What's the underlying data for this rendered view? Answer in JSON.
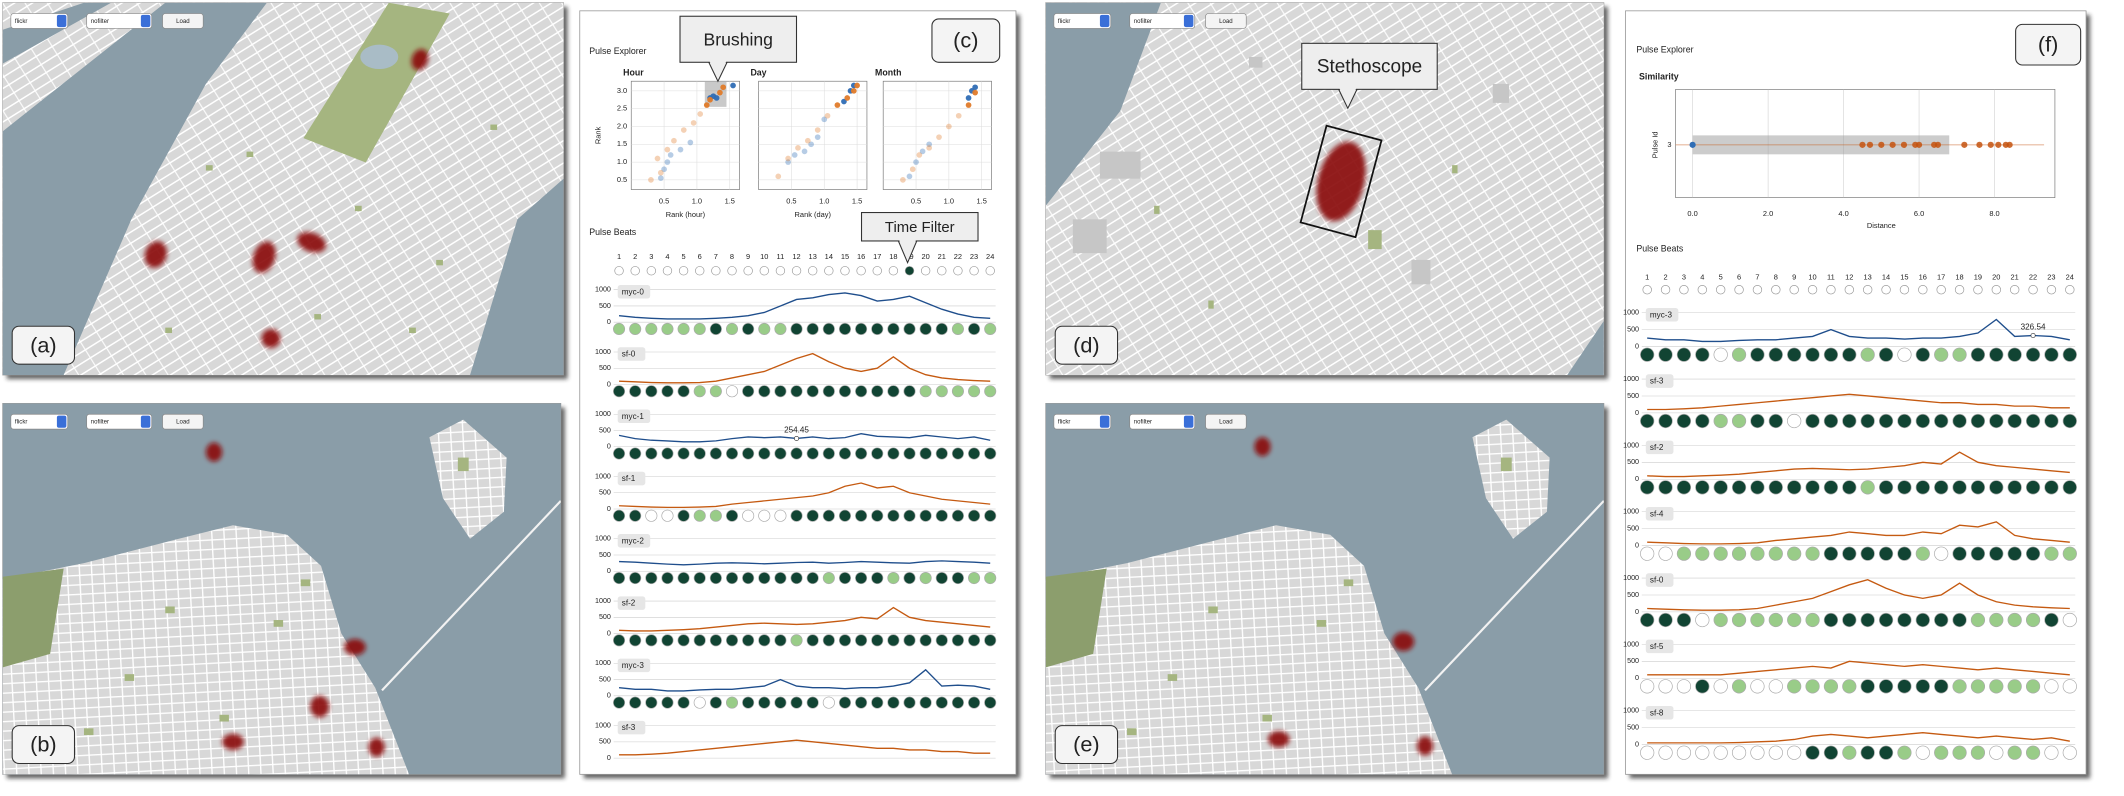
{
  "figure_labels": [
    "(a)",
    "(b)",
    "(c)",
    "(d)",
    "(e)",
    "(f)"
  ],
  "controls": {
    "source": "flickr",
    "filter": "nofilter",
    "button": "Load"
  },
  "callouts": {
    "brushing": "Brushing",
    "time_filter": "Time Filter",
    "stethoscope": "Stethoscope"
  },
  "explorer_c": {
    "title": "Pulse Explorer",
    "y_label": "Rank",
    "xlim": [
      0,
      1.65
    ],
    "xticks": [
      0.5,
      {
        "value": 1,
        "label": "1.0"
      },
      1.5
    ],
    "ylim": [
      0.23,
      3.27
    ],
    "yticks": [
      0.5,
      {
        "value": 1,
        "label": "1.0"
      },
      1.5,
      {
        "value": 2,
        "label": "2.0"
      },
      2.5,
      {
        "value": 3,
        "label": "3.0"
      }
    ],
    "plots": [
      {
        "title": "Hour",
        "x_label": "Rank (hour)",
        "brush": {
          "x": [
            1.12,
            1.45
          ],
          "y": [
            2.55,
            3.25
          ]
        },
        "series": [
          {
            "color": "#2f6db5",
            "x": [
              0.45,
              0.5,
              0.55,
              0.6,
              0.75,
              0.9,
              1.2,
              1.25,
              1.3,
              1.55
            ],
            "y": [
              0.55,
              0.8,
              1.0,
              1.2,
              1.35,
              1.55,
              2.8,
              2.85,
              2.8,
              3.15
            ]
          },
          {
            "color": "#e07b2a",
            "x": [
              0.3,
              0.4,
              0.45,
              0.55,
              0.65,
              0.8,
              0.95,
              1.05,
              1.15,
              1.2,
              1.35,
              1.4
            ],
            "y": [
              0.5,
              1.1,
              0.7,
              1.35,
              1.6,
              1.9,
              2.1,
              2.35,
              2.6,
              2.75,
              2.95,
              3.1
            ]
          }
        ]
      },
      {
        "title": "Day",
        "x_label": "Rank (day)",
        "series": [
          {
            "color": "#2f6db5",
            "x": [
              0.45,
              0.55,
              0.7,
              0.8,
              0.9,
              1.0,
              1.3,
              1.4,
              1.45
            ],
            "y": [
              1.0,
              1.2,
              1.3,
              1.5,
              1.7,
              2.2,
              2.7,
              3.0,
              3.15
            ]
          },
          {
            "color": "#e07b2a",
            "x": [
              0.3,
              0.45,
              0.6,
              0.75,
              0.9,
              1.05,
              1.2,
              1.35,
              1.45,
              1.5
            ],
            "y": [
              0.6,
              1.1,
              1.4,
              1.6,
              1.9,
              2.3,
              2.6,
              2.8,
              3.0,
              3.15
            ]
          }
        ]
      },
      {
        "title": "Month",
        "series": [
          {
            "color": "#2f6db5",
            "x": [
              0.4,
              0.5,
              0.6,
              0.7,
              1.3,
              1.35,
              1.4
            ],
            "y": [
              0.6,
              1.0,
              1.3,
              1.5,
              2.8,
              3.0,
              3.1
            ]
          },
          {
            "color": "#e07b2a",
            "x": [
              0.3,
              0.45,
              0.55,
              0.7,
              0.85,
              1.0,
              1.15,
              1.3,
              1.4
            ],
            "y": [
              0.5,
              0.8,
              1.2,
              1.4,
              1.7,
              2.0,
              2.3,
              2.6,
              2.95
            ]
          }
        ]
      }
    ]
  },
  "beats_c": {
    "title": "Pulse Beats",
    "hours": [
      1,
      2,
      3,
      4,
      5,
      6,
      7,
      8,
      9,
      10,
      11,
      12,
      13,
      14,
      15,
      16,
      17,
      18,
      19,
      20,
      21,
      22,
      23,
      24
    ],
    "ylim": [
      0,
      1000
    ],
    "yticks": [
      1000,
      500,
      0
    ],
    "rows": [
      {
        "name": "myc-0",
        "color": "#1f4e8c",
        "values": [
          200,
          150,
          120,
          100,
          100,
          100,
          120,
          150,
          200,
          300,
          500,
          700,
          750,
          850,
          900,
          820,
          650,
          700,
          800,
          600,
          400,
          250,
          150,
          120
        ],
        "beats": [
          "#9c8",
          "#9c8",
          "#9c8",
          "#9c8",
          "#9c8",
          "#9c8",
          "#143",
          "#9c8",
          "#143",
          "#9c8",
          "#9c8",
          "#143",
          "#143",
          "#143",
          "#143",
          "#143",
          "#143",
          "#143",
          "#143",
          "#143",
          "#143",
          "#9c8",
          "#143",
          "#9c8"
        ]
      },
      {
        "name": "sf-0",
        "color": "#c55a11",
        "values": [
          100,
          80,
          60,
          50,
          50,
          60,
          100,
          200,
          300,
          400,
          600,
          800,
          950,
          700,
          500,
          400,
          500,
          850,
          500,
          300,
          200,
          150,
          120,
          100
        ],
        "beats": [
          "#143",
          "#143",
          "#143",
          "#143",
          "#143",
          "#9c8",
          "#9c8",
          "#fff",
          "#143",
          "#143",
          "#143",
          "#143",
          "#143",
          "#143",
          "#143",
          "#143",
          "#143",
          "#143",
          "#143",
          "#9c8",
          "#9c8",
          "#9c8",
          "#9c8",
          "#9c8"
        ]
      },
      {
        "name": "myc-1",
        "color": "#1f4e8c",
        "values": [
          350,
          250,
          200,
          180,
          150,
          150,
          180,
          250,
          300,
          280,
          300,
          254.45,
          300,
          250,
          280,
          400,
          320,
          300,
          280,
          350,
          300,
          250,
          300,
          200
        ],
        "beats": [
          "#143",
          "#143",
          "#143",
          "#143",
          "#143",
          "#143",
          "#143",
          "#143",
          "#143",
          "#143",
          "#143",
          "#143",
          "#143",
          "#143",
          "#143",
          "#143",
          "#143",
          "#143",
          "#143",
          "#143",
          "#143",
          "#143",
          "#143",
          "#143"
        ]
      },
      {
        "name": "sf-1",
        "color": "#c55a11",
        "values": [
          100,
          80,
          60,
          50,
          50,
          60,
          80,
          150,
          200,
          250,
          300,
          350,
          400,
          500,
          700,
          800,
          650,
          700,
          500,
          400,
          300,
          250,
          200,
          150
        ],
        "beats": [
          "#143",
          "#143",
          "#fff",
          "#fff",
          "#143",
          "#9c8",
          "#9c8",
          "#143",
          "#fff",
          "#fff",
          "#fff",
          "#143",
          "#143",
          "#143",
          "#143",
          "#143",
          "#143",
          "#143",
          "#143",
          "#143",
          "#143",
          "#143",
          "#143",
          "#143"
        ]
      },
      {
        "name": "myc-2",
        "color": "#1f4e8c",
        "values": [
          300,
          280,
          250,
          220,
          200,
          220,
          250,
          260,
          250,
          230,
          250,
          270,
          280,
          250,
          270,
          300,
          280,
          260,
          250,
          300,
          320,
          300,
          280,
          250
        ],
        "beats": [
          "#143",
          "#143",
          "#143",
          "#143",
          "#143",
          "#143",
          "#143",
          "#143",
          "#143",
          "#143",
          "#143",
          "#143",
          "#143",
          "#9c8",
          "#143",
          "#143",
          "#143",
          "#9c8",
          "#143",
          "#9c8",
          "#143",
          "#143",
          "#9c8",
          "#9c8"
        ]
      },
      {
        "name": "sf-2",
        "color": "#c55a11",
        "values": [
          100,
          80,
          80,
          100,
          120,
          150,
          200,
          250,
          300,
          320,
          300,
          280,
          300,
          350,
          400,
          500,
          450,
          800,
          500,
          400,
          350,
          300,
          250,
          200
        ],
        "beats": [
          "#143",
          "#143",
          "#143",
          "#143",
          "#143",
          "#143",
          "#143",
          "#143",
          "#143",
          "#143",
          "#143",
          "#9c8",
          "#143",
          "#143",
          "#143",
          "#143",
          "#143",
          "#143",
          "#143",
          "#143",
          "#143",
          "#143",
          "#143",
          "#143"
        ]
      },
      {
        "name": "myc-3",
        "color": "#1f4e8c",
        "values": [
          250,
          200,
          200,
          150,
          150,
          180,
          200,
          200,
          250,
          300,
          500,
          300,
          250,
          250,
          220,
          250,
          250,
          300,
          400,
          800,
          300,
          326.54,
          300,
          200
        ],
        "beats": [
          "#143",
          "#143",
          "#143",
          "#143",
          "#143",
          "#fff",
          "#143",
          "#9c8",
          "#143",
          "#143",
          "#143",
          "#143",
          "#143",
          "#fff",
          "#143",
          "#143",
          "#143",
          "#143",
          "#143",
          "#143",
          "#143",
          "#143",
          "#143",
          "#143"
        ]
      },
      {
        "name": "sf-3",
        "color": "#c55a11",
        "values": [
          100,
          100,
          120,
          150,
          200,
          250,
          300,
          350,
          400,
          450,
          500,
          550,
          500,
          450,
          400,
          350,
          300,
          300,
          250,
          250,
          200,
          200,
          150,
          150
        ]
      }
    ],
    "annotation": {
      "row": 2,
      "hour": 11
    }
  },
  "explorer_f": {
    "title": "Pulse Explorer",
    "subtitle": "Similarity",
    "y_label": "Pulse Id",
    "y_category": "3",
    "x_label": "Distance",
    "xlim": [
      -0.45,
      9.6
    ],
    "xticks": [
      {
        "value": 0,
        "label": "0.0"
      },
      {
        "value": 2,
        "label": "2.0"
      },
      {
        "value": 4,
        "label": "4.0"
      },
      {
        "value": 6,
        "label": "6.0"
      },
      {
        "value": 8,
        "label": "8.0"
      }
    ],
    "brush": [
      0,
      6.8
    ],
    "query": {
      "color": "#2f6db5",
      "x": [
        0
      ]
    },
    "series": {
      "color": "#c4520e",
      "x": [
        4.5,
        4.7,
        5.0,
        5.3,
        5.6,
        5.9,
        6.0,
        6.4,
        6.5,
        7.2,
        7.6,
        7.9,
        8.1,
        8.3,
        8.4
      ]
    }
  },
  "beats_f": {
    "title": "Pulse Beats",
    "hours": [
      1,
      2,
      3,
      4,
      5,
      6,
      7,
      8,
      9,
      10,
      11,
      12,
      13,
      14,
      15,
      16,
      17,
      18,
      19,
      20,
      21,
      22,
      23,
      24
    ],
    "ylim": [
      0,
      1000
    ],
    "yticks": [
      1000,
      500,
      0
    ],
    "rows": [
      {
        "name": "myc-3",
        "color": "#1f4e8c",
        "values": [
          250,
          200,
          200,
          150,
          150,
          180,
          200,
          200,
          250,
          300,
          500,
          300,
          250,
          250,
          220,
          250,
          250,
          300,
          400,
          800,
          300,
          326.54,
          300,
          200
        ],
        "beats": [
          "#143",
          "#143",
          "#143",
          "#143",
          "#fff",
          "#9c8",
          "#143",
          "#143",
          "#143",
          "#143",
          "#143",
          "#143",
          "#9c8",
          "#143",
          "#fff",
          "#143",
          "#9c8",
          "#9c8",
          "#143",
          "#143",
          "#143",
          "#143",
          "#143",
          "#143"
        ]
      },
      {
        "name": "sf-3",
        "color": "#c55a11",
        "values": [
          100,
          100,
          120,
          150,
          200,
          250,
          300,
          350,
          400,
          450,
          500,
          550,
          500,
          450,
          400,
          350,
          300,
          300,
          250,
          250,
          200,
          200,
          150,
          150
        ],
        "beats": [
          "#143",
          "#143",
          "#143",
          "#143",
          "#9c8",
          "#9c8",
          "#143",
          "#143",
          "#fff",
          "#143",
          "#143",
          "#143",
          "#143",
          "#143",
          "#143",
          "#143",
          "#143",
          "#143",
          "#143",
          "#143",
          "#143",
          "#143",
          "#143",
          "#143"
        ]
      },
      {
        "name": "sf-2",
        "color": "#c55a11",
        "values": [
          100,
          80,
          80,
          100,
          120,
          150,
          200,
          250,
          300,
          320,
          300,
          280,
          300,
          350,
          400,
          500,
          450,
          800,
          500,
          400,
          350,
          300,
          250,
          200
        ],
        "beats": [
          "#143",
          "#143",
          "#143",
          "#143",
          "#143",
          "#143",
          "#143",
          "#143",
          "#143",
          "#143",
          "#143",
          "#143",
          "#9c8",
          "#143",
          "#143",
          "#143",
          "#143",
          "#143",
          "#143",
          "#143",
          "#143",
          "#143",
          "#143",
          "#143"
        ]
      },
      {
        "name": "sf-4",
        "color": "#c55a11",
        "values": [
          100,
          80,
          60,
          50,
          50,
          60,
          80,
          150,
          200,
          250,
          300,
          400,
          350,
          300,
          300,
          400,
          350,
          600,
          550,
          700,
          300,
          200,
          150,
          100
        ],
        "beats": [
          "#fff",
          "#fff",
          "#9c8",
          "#9c8",
          "#9c8",
          "#9c8",
          "#9c8",
          "#9c8",
          "#9c8",
          "#9c8",
          "#143",
          "#143",
          "#143",
          "#143",
          "#143",
          "#9c8",
          "#fff",
          "#143",
          "#143",
          "#143",
          "#143",
          "#143",
          "#9c8",
          "#9c8"
        ]
      },
      {
        "name": "sf-0",
        "color": "#c55a11",
        "values": [
          100,
          80,
          60,
          50,
          50,
          60,
          100,
          200,
          300,
          400,
          600,
          800,
          950,
          700,
          500,
          400,
          500,
          850,
          500,
          300,
          200,
          150,
          120,
          100
        ],
        "beats": [
          "#143",
          "#143",
          "#143",
          "#fff",
          "#9c8",
          "#9c8",
          "#9c8",
          "#9c8",
          "#9c8",
          "#9c8",
          "#143",
          "#143",
          "#143",
          "#143",
          "#143",
          "#143",
          "#143",
          "#143",
          "#9c8",
          "#9c8",
          "#9c8",
          "#9c8",
          "#143",
          "#fff"
        ]
      },
      {
        "name": "sf-5",
        "color": "#c55a11",
        "values": [
          100,
          100,
          100,
          100,
          100,
          150,
          200,
          250,
          300,
          350,
          300,
          500,
          450,
          400,
          350,
          400,
          350,
          300,
          250,
          300,
          250,
          200,
          150,
          100
        ],
        "beats": [
          "#fff",
          "#fff",
          "#fff",
          "#143",
          "#fff",
          "#9c8",
          "#fff",
          "#fff",
          "#9c8",
          "#9c8",
          "#9c8",
          "#9c8",
          "#143",
          "#143",
          "#143",
          "#143",
          "#143",
          "#9c8",
          "#9c8",
          "#9c8",
          "#9c8",
          "#9c8",
          "#fff",
          "#fff"
        ]
      },
      {
        "name": "sf-8",
        "color": "#c55a11",
        "values": [
          50,
          50,
          50,
          50,
          50,
          60,
          80,
          100,
          150,
          250,
          300,
          250,
          200,
          250,
          300,
          350,
          300,
          250,
          200,
          250,
          200,
          150,
          200,
          100
        ],
        "beats": [
          "#fff",
          "#fff",
          "#fff",
          "#fff",
          "#fff",
          "#fff",
          "#fff",
          "#fff",
          "#fff",
          "#143",
          "#143",
          "#9c8",
          "#143",
          "#143",
          "#9c8",
          "#fff",
          "#9c8",
          "#9c8",
          "#9c8",
          "#fff",
          "#9c8",
          "#9c8",
          "#fff",
          "#fff"
        ]
      }
    ],
    "annotation": {
      "row": 0,
      "hour": 21
    }
  }
}
